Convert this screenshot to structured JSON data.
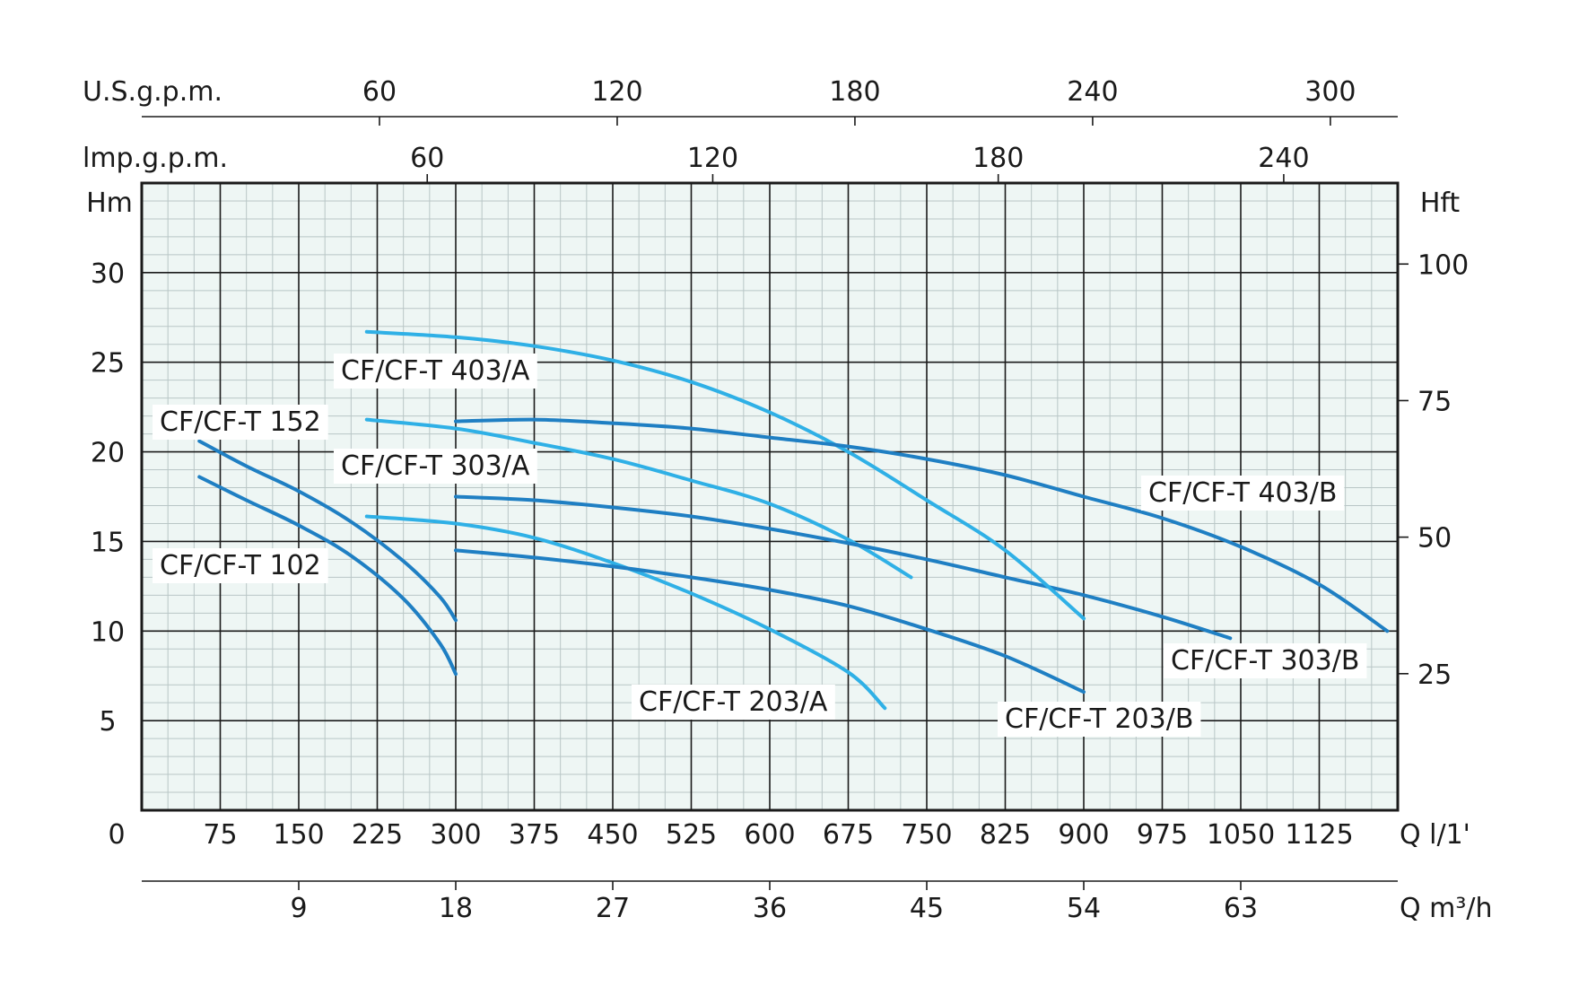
{
  "chart_data": {
    "type": "line",
    "title": "",
    "colors": {
      "dark": "#1f7fc3",
      "light": "#2fb0e6",
      "plot_bg": "#eef6f4",
      "grid": "#1a1a1a"
    },
    "xlim": [
      0,
      1200
    ],
    "ylim": [
      0,
      35
    ],
    "grid": true,
    "y_left": {
      "label": "Hm",
      "ticks": [
        5,
        10,
        15,
        20,
        25,
        30
      ]
    },
    "y_right": {
      "label": "Hft",
      "ticks": [
        25,
        50,
        75,
        100
      ]
    },
    "x_bottom": {
      "label": "Q l/1'",
      "zero_label": "0",
      "ticks": [
        75,
        150,
        225,
        300,
        375,
        450,
        525,
        600,
        675,
        750,
        825,
        900,
        975,
        1050,
        1125
      ]
    },
    "x_m3h": {
      "label": "Q m³/h",
      "ticks": [
        9,
        18,
        27,
        36,
        45,
        54,
        63
      ]
    },
    "x_usgpm": {
      "label": "U.S.g.p.m.",
      "ticks": [
        60,
        120,
        180,
        240,
        300
      ]
    },
    "x_impgpm": {
      "label": "lmp.g.p.m.",
      "ticks": [
        60,
        120,
        180,
        240
      ]
    },
    "series": [
      {
        "name": "CF/CF-T 102",
        "color": "dark",
        "points": [
          [
            55,
            18.6
          ],
          [
            100,
            17.3
          ],
          [
            150,
            15.9
          ],
          [
            200,
            14.2
          ],
          [
            250,
            11.8
          ],
          [
            285,
            9.3
          ],
          [
            300,
            7.6
          ]
        ]
      },
      {
        "name": "CF/CF-T 152",
        "color": "dark",
        "points": [
          [
            55,
            20.6
          ],
          [
            100,
            19.2
          ],
          [
            150,
            17.8
          ],
          [
            200,
            16.1
          ],
          [
            250,
            13.9
          ],
          [
            285,
            11.9
          ],
          [
            300,
            10.6
          ]
        ]
      },
      {
        "name": "CF/CF-T 203/A",
        "color": "light",
        "points": [
          [
            215,
            16.4
          ],
          [
            300,
            16.0
          ],
          [
            375,
            15.2
          ],
          [
            450,
            13.8
          ],
          [
            525,
            12.1
          ],
          [
            600,
            10.1
          ],
          [
            675,
            7.7
          ],
          [
            710,
            5.7
          ]
        ]
      },
      {
        "name": "CF/CF-T 203/B",
        "color": "dark",
        "points": [
          [
            300,
            14.5
          ],
          [
            375,
            14.1
          ],
          [
            450,
            13.6
          ],
          [
            525,
            13.0
          ],
          [
            600,
            12.3
          ],
          [
            675,
            11.4
          ],
          [
            750,
            10.1
          ],
          [
            825,
            8.6
          ],
          [
            900,
            6.6
          ]
        ]
      },
      {
        "name": "CF/CF-T 303/A",
        "color": "light",
        "points": [
          [
            215,
            21.8
          ],
          [
            300,
            21.3
          ],
          [
            375,
            20.5
          ],
          [
            450,
            19.6
          ],
          [
            525,
            18.4
          ],
          [
            600,
            17.1
          ],
          [
            675,
            15.1
          ],
          [
            735,
            13.0
          ]
        ]
      },
      {
        "name": "CF/CF-T 303/B",
        "color": "dark",
        "points": [
          [
            300,
            17.5
          ],
          [
            375,
            17.3
          ],
          [
            450,
            16.9
          ],
          [
            525,
            16.4
          ],
          [
            600,
            15.7
          ],
          [
            675,
            14.9
          ],
          [
            750,
            14.0
          ],
          [
            825,
            13.0
          ],
          [
            900,
            12.0
          ],
          [
            975,
            10.8
          ],
          [
            1040,
            9.6
          ]
        ]
      },
      {
        "name": "CF/CF-T 403/A",
        "color": "light",
        "points": [
          [
            215,
            26.7
          ],
          [
            300,
            26.4
          ],
          [
            375,
            25.9
          ],
          [
            450,
            25.1
          ],
          [
            525,
            23.9
          ],
          [
            600,
            22.2
          ],
          [
            675,
            20.0
          ],
          [
            750,
            17.3
          ],
          [
            825,
            14.5
          ],
          [
            900,
            10.7
          ]
        ]
      },
      {
        "name": "CF/CF-T 403/B",
        "color": "dark",
        "points": [
          [
            300,
            21.7
          ],
          [
            375,
            21.8
          ],
          [
            450,
            21.6
          ],
          [
            525,
            21.3
          ],
          [
            600,
            20.8
          ],
          [
            675,
            20.3
          ],
          [
            750,
            19.6
          ],
          [
            825,
            18.7
          ],
          [
            900,
            17.5
          ],
          [
            975,
            16.3
          ],
          [
            1050,
            14.7
          ],
          [
            1125,
            12.6
          ],
          [
            1190,
            10.0
          ]
        ]
      }
    ]
  }
}
